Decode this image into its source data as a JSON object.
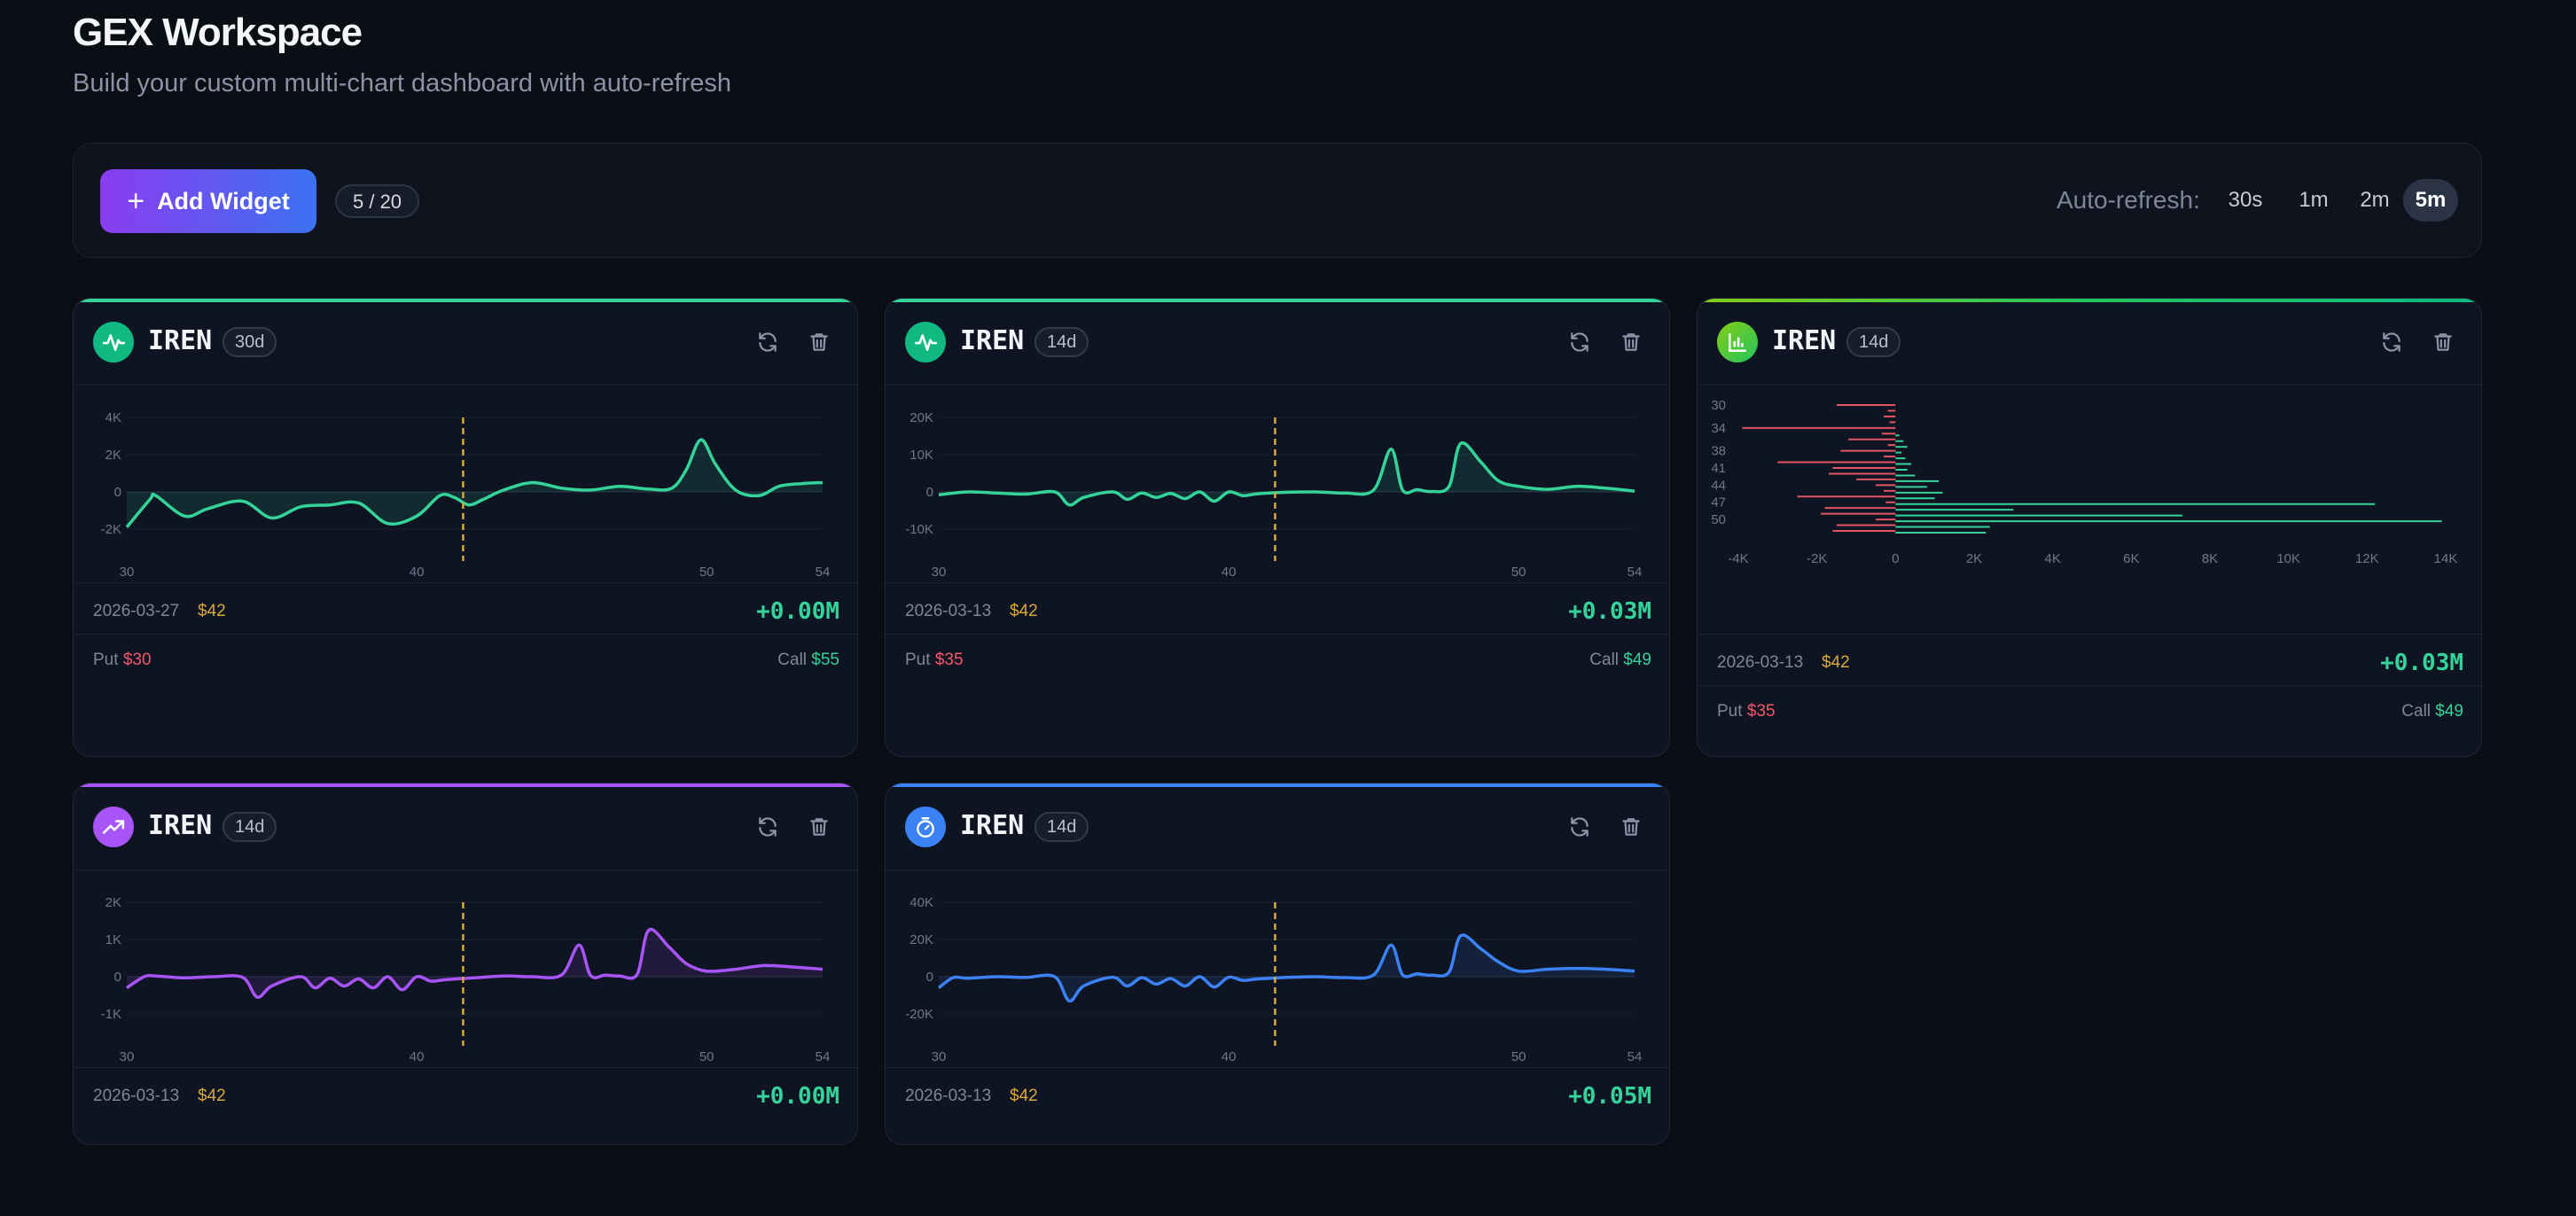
{
  "header": {
    "title": "GEX Workspace",
    "subtitle": "Build your custom multi-chart dashboard with auto-refresh"
  },
  "toolbar": {
    "add_label": "Add Widget",
    "count": "5 / 20",
    "refresh_label": "Auto-refresh:",
    "refresh_options": [
      "30s",
      "1m",
      "2m",
      "5m"
    ],
    "refresh_selected": "5m"
  },
  "colors": {
    "green": "#34d399",
    "purple": "#a855f7",
    "blue": "#3b82f6",
    "red": "#f05a6a",
    "gold": "#d9a93a"
  },
  "widgets": [
    {
      "ticker": "IREN",
      "range": "30d",
      "icon": "activity-icon",
      "color": "#34d399",
      "date": "2026-03-27",
      "price": "$42",
      "gex": "+0.00M",
      "put_label": "Put",
      "put": "$30",
      "call_label": "Call",
      "call": "$55",
      "chart_data": {
        "type": "area",
        "y_ticks": [
          "4K",
          "2K",
          "0",
          "-2K"
        ],
        "x_ticks": [
          "30",
          "40",
          "50",
          "54"
        ],
        "ylim": [
          -2000,
          4000
        ],
        "xlim": [
          30,
          54
        ],
        "spot": 41.6,
        "x": [
          30,
          30.8,
          31,
          32,
          32.8,
          34,
          35,
          36,
          37,
          38,
          39,
          40,
          40.8,
          41.3,
          41.8,
          42.3,
          43,
          44,
          45,
          46,
          47,
          48,
          48.8,
          49.3,
          49.8,
          50.3,
          51,
          51.8,
          52.5,
          53.3,
          54
        ],
        "y": [
          -1900,
          -400,
          -200,
          -1300,
          -900,
          -500,
          -1400,
          -800,
          -700,
          -600,
          -1700,
          -1300,
          -200,
          -300,
          -700,
          -400,
          100,
          500,
          200,
          100,
          300,
          150,
          200,
          1200,
          2800,
          1500,
          100,
          -200,
          300,
          450,
          500
        ]
      }
    },
    {
      "ticker": "IREN",
      "range": "14d",
      "icon": "activity-icon",
      "color": "#34d399",
      "date": "2026-03-13",
      "price": "$42",
      "gex": "+0.03M",
      "put_label": "Put",
      "put": "$35",
      "call_label": "Call",
      "call": "$49",
      "chart_data": {
        "type": "area",
        "y_ticks": [
          "20K",
          "10K",
          "0",
          "-10K"
        ],
        "x_ticks": [
          "30",
          "40",
          "50",
          "54"
        ],
        "ylim": [
          -10000,
          20000
        ],
        "xlim": [
          30,
          54
        ],
        "spot": 41.6,
        "x": [
          30,
          31,
          32,
          33,
          34,
          34.5,
          35,
          36,
          36.5,
          37,
          37.5,
          38,
          38.5,
          39,
          39.5,
          40,
          40.5,
          41,
          42,
          43,
          44,
          45,
          45.6,
          46,
          46.5,
          47,
          47.6,
          48,
          48.7,
          49.3,
          50,
          51,
          52,
          53,
          54
        ],
        "y": [
          -800,
          0,
          -300,
          -600,
          0,
          -3500,
          -1500,
          0,
          -2000,
          -300,
          -1500,
          -400,
          -1800,
          0,
          -2500,
          0,
          -1000,
          -500,
          -100,
          0,
          -300,
          500,
          11500,
          500,
          600,
          100,
          1500,
          13000,
          8000,
          3000,
          1500,
          700,
          1500,
          1000,
          200
        ]
      }
    },
    {
      "ticker": "IREN",
      "range": "14d",
      "icon": "bar-chart-icon",
      "color": "#22c55e",
      "date": "2026-03-13",
      "price": "$42",
      "gex": "+0.03M",
      "put_label": "Put",
      "put": "$35",
      "call_label": "Call",
      "call": "$49",
      "chart_data": {
        "type": "bar",
        "orientation": "horizontal",
        "y_ticks": [
          "30",
          "34",
          "38",
          "41",
          "44",
          "47",
          "50"
        ],
        "x_ticks": [
          "-4K",
          "-2K",
          "0",
          "2K",
          "4K",
          "6K",
          "8K",
          "10K",
          "12K",
          "14K"
        ],
        "xlim": [
          -4000,
          14000
        ],
        "strikes": [
          30,
          31,
          32,
          33,
          34,
          35,
          36,
          37,
          38,
          39,
          40,
          41,
          42,
          43,
          44,
          45,
          46,
          47,
          48,
          49,
          50,
          51,
          52
        ],
        "put": [
          -1500,
          -200,
          -300,
          -150,
          -3900,
          -350,
          -1200,
          -200,
          -1400,
          -300,
          -3000,
          -1600,
          -1700,
          -1000,
          -500,
          -300,
          -2500,
          -250,
          -1800,
          -1900,
          -500,
          -1500,
          -1600
        ],
        "call": [
          0,
          0,
          0,
          0,
          0,
          100,
          200,
          300,
          150,
          250,
          400,
          300,
          500,
          1100,
          800,
          1200,
          1000,
          12200,
          3000,
          7300,
          13900,
          2400,
          2300
        ]
      }
    },
    {
      "ticker": "IREN",
      "range": "14d",
      "icon": "trending-up-icon",
      "color": "#a855f7",
      "date": "2026-03-13",
      "price": "$42",
      "gex": "+0.00M",
      "chart_data": {
        "type": "area",
        "y_ticks": [
          "2K",
          "1K",
          "0",
          "-1K"
        ],
        "x_ticks": [
          "30",
          "40",
          "50",
          "54"
        ],
        "ylim": [
          -1000,
          2000
        ],
        "xlim": [
          30,
          54
        ],
        "spot": 41.6,
        "x": [
          30,
          30.6,
          31,
          32,
          33,
          34,
          34.5,
          35,
          36,
          36.5,
          37,
          37.5,
          38,
          38.5,
          39,
          39.5,
          40,
          40.5,
          41,
          42,
          43,
          44,
          45,
          45.6,
          46,
          46.5,
          47,
          47.6,
          48,
          48.7,
          49.3,
          50,
          51,
          52,
          53,
          54
        ],
        "y": [
          -300,
          0,
          20,
          -30,
          0,
          -20,
          -550,
          -250,
          0,
          -300,
          -40,
          -250,
          -60,
          -300,
          0,
          -350,
          0,
          -120,
          -80,
          -30,
          20,
          0,
          50,
          850,
          30,
          40,
          20,
          60,
          1250,
          800,
          350,
          150,
          200,
          300,
          260,
          200
        ]
      }
    },
    {
      "ticker": "IREN",
      "range": "14d",
      "icon": "timer-icon",
      "color": "#3b82f6",
      "date": "2026-03-13",
      "price": "$42",
      "gex": "+0.05M",
      "chart_data": {
        "type": "area",
        "y_ticks": [
          "40K",
          "20K",
          "0",
          "-20K"
        ],
        "x_ticks": [
          "30",
          "40",
          "50",
          "54"
        ],
        "ylim": [
          -20000,
          40000
        ],
        "xlim": [
          30,
          54
        ],
        "spot": 41.6,
        "x": [
          30,
          30.5,
          31,
          32,
          33,
          34,
          34.5,
          35,
          36,
          36.5,
          37,
          37.5,
          38,
          38.5,
          39,
          39.5,
          40,
          40.5,
          41,
          42,
          43,
          44,
          45,
          45.6,
          46,
          46.5,
          47,
          47.6,
          48,
          48.7,
          49.3,
          50,
          51,
          52,
          53,
          54
        ],
        "y": [
          -6000,
          -500,
          -800,
          0,
          -400,
          0,
          -13000,
          -5000,
          -300,
          -5000,
          -500,
          -4000,
          -1000,
          -5000,
          0,
          -5500,
          -300,
          -2000,
          -1200,
          -400,
          0,
          -500,
          1000,
          17000,
          1000,
          1500,
          800,
          2500,
          22000,
          15000,
          8000,
          3000,
          4000,
          4500,
          4000,
          3000
        ]
      }
    }
  ]
}
